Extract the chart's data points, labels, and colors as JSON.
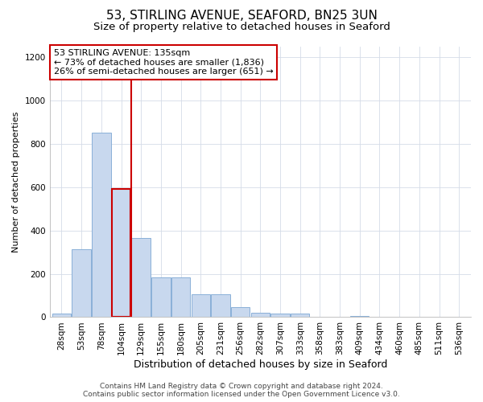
{
  "title_line1": "53, STIRLING AVENUE, SEAFORD, BN25 3UN",
  "title_line2": "Size of property relative to detached houses in Seaford",
  "xlabel": "Distribution of detached houses by size in Seaford",
  "ylabel": "Number of detached properties",
  "categories": [
    "28sqm",
    "53sqm",
    "78sqm",
    "104sqm",
    "129sqm",
    "155sqm",
    "180sqm",
    "205sqm",
    "231sqm",
    "256sqm",
    "282sqm",
    "307sqm",
    "333sqm",
    "358sqm",
    "383sqm",
    "409sqm",
    "434sqm",
    "460sqm",
    "485sqm",
    "511sqm",
    "536sqm"
  ],
  "values": [
    15,
    315,
    850,
    590,
    365,
    185,
    185,
    105,
    105,
    45,
    20,
    15,
    15,
    0,
    0,
    5,
    0,
    0,
    0,
    0,
    0
  ],
  "bar_color": "#c8d8ee",
  "bar_edge_color": "#8ab0d8",
  "highlight_bar_index": 3,
  "highlight_bar_edge_color": "#cc0000",
  "red_line_x": 3.5,
  "annotation_text": "53 STIRLING AVENUE: 135sqm\n← 73% of detached houses are smaller (1,836)\n26% of semi-detached houses are larger (651) →",
  "annotation_box_edge": "#cc0000",
  "ylim": [
    0,
    1250
  ],
  "yticks": [
    0,
    200,
    400,
    600,
    800,
    1000,
    1200
  ],
  "footer_line1": "Contains HM Land Registry data © Crown copyright and database right 2024.",
  "footer_line2": "Contains public sector information licensed under the Open Government Licence v3.0.",
  "bg_color": "#ffffff",
  "grid_color": "#d4dce8",
  "title1_fontsize": 11,
  "title2_fontsize": 9.5,
  "xlabel_fontsize": 9,
  "ylabel_fontsize": 8,
  "tick_fontsize": 7.5,
  "footer_fontsize": 6.5,
  "annotation_fontsize": 8
}
